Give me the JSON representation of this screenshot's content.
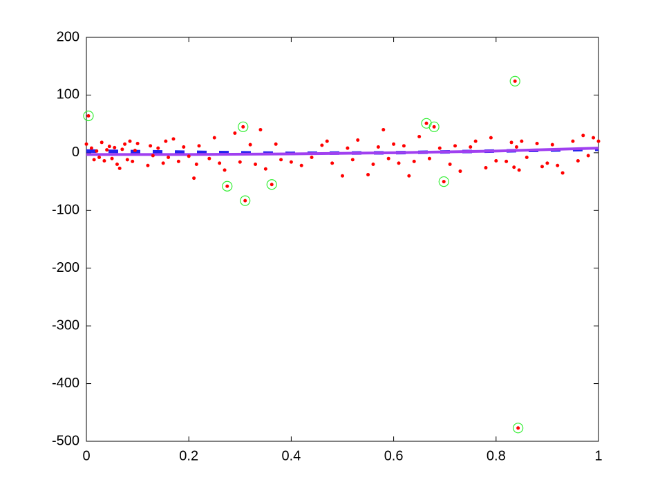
{
  "chart_data": {
    "type": "scatter",
    "xlim": [
      0,
      1
    ],
    "xticks": [
      0,
      0.2,
      0.4,
      0.6,
      0.8,
      1
    ],
    "ylim": [
      -500,
      200
    ],
    "yticks": [
      -500,
      -400,
      -300,
      -200,
      -100,
      0,
      100,
      200
    ],
    "grid": false,
    "series": [
      {
        "style": "dot",
        "color": "#ff0000",
        "x": [
          0,
          0.01,
          0.015,
          0.02,
          0.025,
          0.03,
          0.035,
          0.04,
          0.045,
          0.05,
          0.055,
          0.06,
          0.065,
          0.07,
          0.075,
          0.08,
          0.085,
          0.09,
          0.095,
          0.1,
          0.12,
          0.125,
          0.13,
          0.14,
          0.15,
          0.155,
          0.16,
          0.17,
          0.18,
          0.19,
          0.2,
          0.21,
          0.215,
          0.22,
          0.24,
          0.25,
          0.26,
          0.27,
          0.29,
          0.3,
          0.32,
          0.33,
          0.34,
          0.35,
          0.37,
          0.38,
          0.4,
          0.42,
          0.44,
          0.46,
          0.47,
          0.48,
          0.5,
          0.51,
          0.52,
          0.53,
          0.55,
          0.56,
          0.57,
          0.58,
          0.59,
          0.6,
          0.61,
          0.62,
          0.63,
          0.64,
          0.65,
          0.67,
          0.69,
          0.71,
          0.72,
          0.73,
          0.75,
          0.76,
          0.78,
          0.79,
          0.8,
          0.82,
          0.83,
          0.835,
          0.84,
          0.845,
          0.85,
          0.86,
          0.88,
          0.89,
          0.9,
          0.91,
          0.92,
          0.93,
          0.95,
          0.96,
          0.97,
          0.98,
          0.99,
          1,
          0.004,
          0.306,
          0.275,
          0.31,
          0.362,
          0.664,
          0.679,
          0.698,
          0.837,
          0.843
        ],
        "values": [
          15,
          8,
          -12,
          3,
          -8,
          18,
          -14,
          5,
          11,
          -10,
          9,
          -20,
          -27,
          6,
          15,
          -12,
          20,
          -15,
          4,
          16,
          -22,
          12,
          -5,
          8,
          -18,
          20,
          -8,
          24,
          -15,
          10,
          -6,
          -44,
          -20,
          12,
          -10,
          26,
          -18,
          -30,
          34,
          -16,
          14,
          -20,
          40,
          -28,
          15,
          -12,
          -16,
          -22,
          -8,
          13,
          20,
          -18,
          -40,
          8,
          -12,
          22,
          -38,
          -20,
          10,
          40,
          -10,
          15,
          -18,
          12,
          -40,
          -15,
          28,
          -10,
          8,
          -20,
          12,
          -32,
          10,
          20,
          -26,
          26,
          -14,
          -15,
          18,
          -25,
          10,
          -30,
          20,
          -8,
          16,
          -24,
          -18,
          14,
          -22,
          -35,
          20,
          -14,
          30,
          -5,
          26,
          20,
          64,
          45,
          -58,
          -83,
          -55,
          51,
          45,
          -50,
          124,
          -477
        ]
      },
      {
        "style": "ring",
        "color": "#33ee33",
        "x": [
          0.004,
          0.306,
          0.275,
          0.31,
          0.362,
          0.664,
          0.679,
          0.698,
          0.837,
          0.843
        ],
        "values": [
          64,
          45,
          -58,
          -83,
          -55,
          51,
          45,
          -50,
          124,
          -477
        ]
      },
      {
        "style": "dashed",
        "color": "#2222ee",
        "x": [
          0,
          0.2,
          0.4,
          0.6,
          0.8,
          1
        ],
        "values": [
          3,
          1,
          -1,
          0,
          3,
          6
        ]
      },
      {
        "style": "solid",
        "color": "#a040f0",
        "x": [
          0,
          0.2,
          0.4,
          0.6,
          0.8,
          1
        ],
        "values": [
          -3,
          -3,
          -2,
          0,
          3,
          8
        ]
      }
    ]
  }
}
